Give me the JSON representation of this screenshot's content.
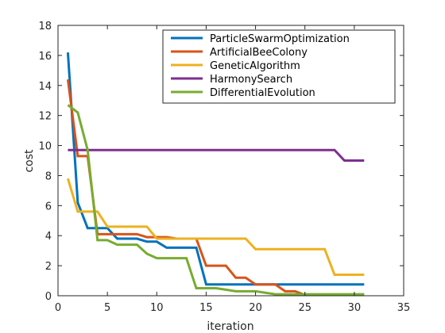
{
  "chart_data": {
    "type": "line",
    "title": "",
    "xlabel": "iteration",
    "ylabel": "cost",
    "xlim": [
      0,
      35
    ],
    "ylim": [
      0,
      18
    ],
    "xticks": [
      0,
      5,
      10,
      15,
      20,
      25,
      30,
      35
    ],
    "yticks": [
      0,
      2,
      4,
      6,
      8,
      10,
      12,
      14,
      16,
      18
    ],
    "grid": false,
    "legend_position": "top-right",
    "series": [
      {
        "name": "ParticleSwarmOptimization",
        "color": "#0072BD",
        "x": [
          1,
          2,
          3,
          4,
          5,
          6,
          7,
          8,
          9,
          10,
          11,
          12,
          13,
          14,
          15,
          16,
          17,
          18,
          19,
          20,
          21,
          22,
          23,
          24,
          25,
          26,
          27,
          28,
          29,
          30,
          31
        ],
        "y": [
          16.2,
          6.2,
          4.5,
          4.5,
          4.5,
          3.8,
          3.8,
          3.8,
          3.6,
          3.6,
          3.2,
          3.2,
          3.2,
          3.2,
          0.75,
          0.75,
          0.75,
          0.75,
          0.75,
          0.75,
          0.75,
          0.75,
          0.75,
          0.75,
          0.75,
          0.75,
          0.75,
          0.75,
          0.75,
          0.75,
          0.75
        ]
      },
      {
        "name": "ArtificialBeeColony",
        "color": "#D95319",
        "x": [
          1,
          2,
          3,
          4,
          5,
          6,
          7,
          8,
          9,
          10,
          11,
          12,
          13,
          14,
          15,
          16,
          17,
          18,
          19,
          20,
          21,
          22,
          23,
          24,
          25,
          26,
          27,
          28,
          29,
          30,
          31
        ],
        "y": [
          14.4,
          9.3,
          9.3,
          4.1,
          4.1,
          4.1,
          4.1,
          4.1,
          3.9,
          3.9,
          3.9,
          3.8,
          3.8,
          3.8,
          2.0,
          2.0,
          2.0,
          1.2,
          1.2,
          0.75,
          0.75,
          0.75,
          0.3,
          0.3,
          0.05,
          0.05,
          0.05,
          0.05,
          0.05,
          0.05,
          0.05
        ]
      },
      {
        "name": "GeneticAlgorithm",
        "color": "#EDB120",
        "x": [
          1,
          2,
          3,
          4,
          5,
          6,
          7,
          8,
          9,
          10,
          11,
          12,
          13,
          14,
          15,
          16,
          17,
          18,
          19,
          20,
          21,
          22,
          23,
          24,
          25,
          26,
          27,
          28,
          29,
          30,
          31
        ],
        "y": [
          7.8,
          5.6,
          5.6,
          5.6,
          4.6,
          4.6,
          4.6,
          4.6,
          4.6,
          3.8,
          3.8,
          3.8,
          3.8,
          3.8,
          3.8,
          3.8,
          3.8,
          3.8,
          3.8,
          3.1,
          3.1,
          3.1,
          3.1,
          3.1,
          3.1,
          3.1,
          3.1,
          1.4,
          1.4,
          1.4,
          1.4
        ]
      },
      {
        "name": "HarmonySearch",
        "color": "#7E2F8E",
        "x": [
          1,
          2,
          3,
          4,
          5,
          6,
          7,
          8,
          9,
          10,
          11,
          12,
          13,
          14,
          15,
          16,
          17,
          18,
          19,
          20,
          21,
          22,
          23,
          24,
          25,
          26,
          27,
          28,
          29,
          30,
          31
        ],
        "y": [
          9.7,
          9.7,
          9.7,
          9.7,
          9.7,
          9.7,
          9.7,
          9.7,
          9.7,
          9.7,
          9.7,
          9.7,
          9.7,
          9.7,
          9.7,
          9.7,
          9.7,
          9.7,
          9.7,
          9.7,
          9.7,
          9.7,
          9.7,
          9.7,
          9.7,
          9.7,
          9.7,
          9.7,
          9.0,
          9.0,
          9.0
        ]
      },
      {
        "name": "DifferentialEvolution",
        "color": "#77AC30",
        "x": [
          1,
          2,
          3,
          4,
          5,
          6,
          7,
          8,
          9,
          10,
          11,
          12,
          13,
          14,
          15,
          16,
          17,
          18,
          19,
          20,
          21,
          22,
          23,
          24,
          25,
          26,
          27,
          28,
          29,
          30,
          31
        ],
        "y": [
          12.7,
          12.2,
          9.7,
          3.7,
          3.7,
          3.4,
          3.4,
          3.4,
          2.8,
          2.5,
          2.5,
          2.5,
          2.5,
          0.5,
          0.5,
          0.5,
          0.4,
          0.3,
          0.3,
          0.3,
          0.2,
          0.1,
          0.1,
          0.1,
          0.1,
          0.1,
          0.1,
          0.1,
          0.1,
          0.1,
          0.1
        ]
      }
    ]
  }
}
